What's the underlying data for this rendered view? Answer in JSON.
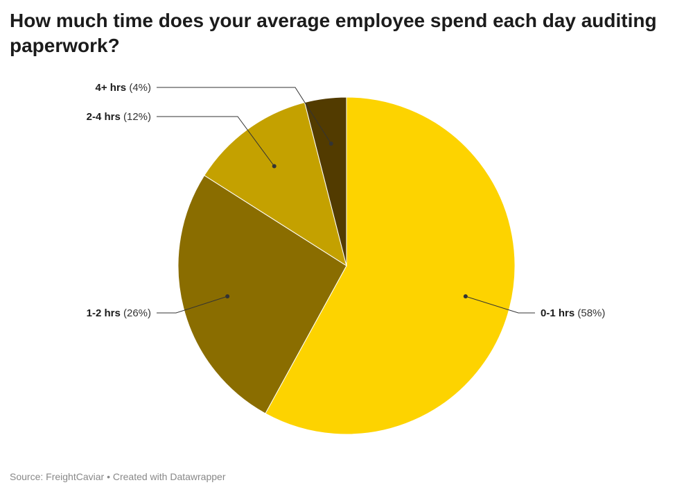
{
  "header": {
    "title": "How much time does your average employee spend each day auditing paperwork?"
  },
  "chart_data": {
    "type": "pie",
    "title": "How much time does your average employee spend each day auditing paperwork?",
    "slices": [
      {
        "label": "0-1 hrs",
        "value": 58,
        "value_label": "(58%)",
        "color": "#fdd300"
      },
      {
        "label": "1-2 hrs",
        "value": 26,
        "value_label": "(26%)",
        "color": "#8a6d00"
      },
      {
        "label": "2-4 hrs",
        "value": 12,
        "value_label": "(12%)",
        "color": "#c4a100"
      },
      {
        "label": "4+ hrs",
        "value": 4,
        "value_label": "(4%)",
        "color": "#523b00"
      }
    ],
    "start_angle_deg": 0,
    "direction": "clockwise"
  },
  "footer": {
    "source": "Source: FreightCaviar",
    "separator": "•",
    "credit": "Created with Datawrapper"
  }
}
